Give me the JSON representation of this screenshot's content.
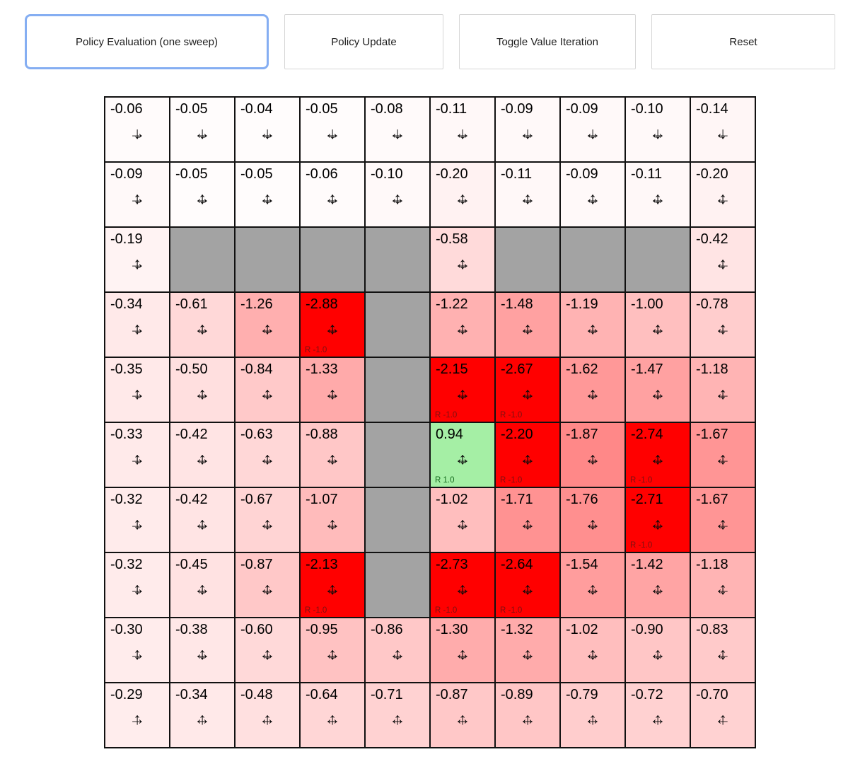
{
  "toolbar": {
    "buttons": [
      {
        "label": "Policy Evaluation (one sweep)",
        "active": true
      },
      {
        "label": "Policy Update",
        "active": false
      },
      {
        "label": "Toggle Value Iteration",
        "active": false
      },
      {
        "label": "Reset",
        "active": false
      }
    ]
  },
  "colors": {
    "accent": "#85aef2",
    "wall": "#a3a3a3",
    "negative": "#ff0000",
    "positive": "#8ce68c",
    "grid_line": "#111111"
  },
  "grid": {
    "rows": 10,
    "cols": 10,
    "cells": [
      [
        {
          "t": "-0.06",
          "v": -0.06,
          "d": "dr"
        },
        {
          "t": "-0.05",
          "v": -0.05,
          "d": "dlr"
        },
        {
          "t": "-0.04",
          "v": -0.04,
          "d": "dlr"
        },
        {
          "t": "-0.05",
          "v": -0.05,
          "d": "dlr"
        },
        {
          "t": "-0.08",
          "v": -0.08,
          "d": "dlr"
        },
        {
          "t": "-0.11",
          "v": -0.11,
          "d": "dlr"
        },
        {
          "t": "-0.09",
          "v": -0.09,
          "d": "dlr"
        },
        {
          "t": "-0.09",
          "v": -0.09,
          "d": "dlr"
        },
        {
          "t": "-0.10",
          "v": -0.1,
          "d": "dlr"
        },
        {
          "t": "-0.14",
          "v": -0.14,
          "d": "dl"
        }
      ],
      [
        {
          "t": "-0.09",
          "v": -0.09,
          "d": "udr"
        },
        {
          "t": "-0.05",
          "v": -0.05,
          "d": "udlr"
        },
        {
          "t": "-0.05",
          "v": -0.05,
          "d": "udlr"
        },
        {
          "t": "-0.06",
          "v": -0.06,
          "d": "udlr"
        },
        {
          "t": "-0.10",
          "v": -0.1,
          "d": "udlr"
        },
        {
          "t": "-0.20",
          "v": -0.2,
          "d": "udlr"
        },
        {
          "t": "-0.11",
          "v": -0.11,
          "d": "udlr"
        },
        {
          "t": "-0.09",
          "v": -0.09,
          "d": "udlr"
        },
        {
          "t": "-0.11",
          "v": -0.11,
          "d": "udlr"
        },
        {
          "t": "-0.20",
          "v": -0.2,
          "d": "udl"
        }
      ],
      [
        {
          "t": "-0.19",
          "v": -0.19,
          "d": "udr"
        },
        {
          "w": true
        },
        {
          "w": true
        },
        {
          "w": true
        },
        {
          "w": true
        },
        {
          "t": "-0.58",
          "v": -0.58,
          "d": "udlr"
        },
        {
          "w": true
        },
        {
          "w": true
        },
        {
          "w": true
        },
        {
          "t": "-0.42",
          "v": -0.42,
          "d": "udl"
        }
      ],
      [
        {
          "t": "-0.34",
          "v": -0.34,
          "d": "udr"
        },
        {
          "t": "-0.61",
          "v": -0.61,
          "d": "udlr"
        },
        {
          "t": "-1.26",
          "v": -1.26,
          "d": "udlr"
        },
        {
          "t": "-2.88",
          "v": -2.88,
          "d": "udlr",
          "r": "R -1.0"
        },
        {
          "w": true
        },
        {
          "t": "-1.22",
          "v": -1.22,
          "d": "udlr"
        },
        {
          "t": "-1.48",
          "v": -1.48,
          "d": "udlr"
        },
        {
          "t": "-1.19",
          "v": -1.19,
          "d": "udlr"
        },
        {
          "t": "-1.00",
          "v": -1.0,
          "d": "udlr"
        },
        {
          "t": "-0.78",
          "v": -0.78,
          "d": "udl"
        }
      ],
      [
        {
          "t": "-0.35",
          "v": -0.35,
          "d": "udr"
        },
        {
          "t": "-0.50",
          "v": -0.5,
          "d": "udlr"
        },
        {
          "t": "-0.84",
          "v": -0.84,
          "d": "udlr"
        },
        {
          "t": "-1.33",
          "v": -1.33,
          "d": "udlr"
        },
        {
          "w": true
        },
        {
          "t": "-2.15",
          "v": -2.15,
          "d": "udlr",
          "r": "R -1.0"
        },
        {
          "t": "-2.67",
          "v": -2.67,
          "d": "udlr",
          "r": "R -1.0"
        },
        {
          "t": "-1.62",
          "v": -1.62,
          "d": "udlr"
        },
        {
          "t": "-1.47",
          "v": -1.47,
          "d": "udlr"
        },
        {
          "t": "-1.18",
          "v": -1.18,
          "d": "udl"
        }
      ],
      [
        {
          "t": "-0.33",
          "v": -0.33,
          "d": "udr"
        },
        {
          "t": "-0.42",
          "v": -0.42,
          "d": "udlr"
        },
        {
          "t": "-0.63",
          "v": -0.63,
          "d": "udlr"
        },
        {
          "t": "-0.88",
          "v": -0.88,
          "d": "udlr"
        },
        {
          "w": true
        },
        {
          "t": "0.94",
          "v": 0.94,
          "d": "udlr",
          "r": "R 1.0"
        },
        {
          "t": "-2.20",
          "v": -2.2,
          "d": "udlr",
          "r": "R -1.0"
        },
        {
          "t": "-1.87",
          "v": -1.87,
          "d": "udlr"
        },
        {
          "t": "-2.74",
          "v": -2.74,
          "d": "udlr",
          "r": "R -1.0"
        },
        {
          "t": "-1.67",
          "v": -1.67,
          "d": "udl"
        }
      ],
      [
        {
          "t": "-0.32",
          "v": -0.32,
          "d": "udr"
        },
        {
          "t": "-0.42",
          "v": -0.42,
          "d": "udlr"
        },
        {
          "t": "-0.67",
          "v": -0.67,
          "d": "udlr"
        },
        {
          "t": "-1.07",
          "v": -1.07,
          "d": "udlr"
        },
        {
          "w": true
        },
        {
          "t": "-1.02",
          "v": -1.02,
          "d": "udlr"
        },
        {
          "t": "-1.71",
          "v": -1.71,
          "d": "udlr"
        },
        {
          "t": "-1.76",
          "v": -1.76,
          "d": "udlr"
        },
        {
          "t": "-2.71",
          "v": -2.71,
          "d": "udlr",
          "r": "R -1.0"
        },
        {
          "t": "-1.67",
          "v": -1.67,
          "d": "udl"
        }
      ],
      [
        {
          "t": "-0.32",
          "v": -0.32,
          "d": "udr"
        },
        {
          "t": "-0.45",
          "v": -0.45,
          "d": "udlr"
        },
        {
          "t": "-0.87",
          "v": -0.87,
          "d": "udlr"
        },
        {
          "t": "-2.13",
          "v": -2.13,
          "d": "udlr",
          "r": "R -1.0"
        },
        {
          "w": true
        },
        {
          "t": "-2.73",
          "v": -2.73,
          "d": "udlr",
          "r": "R -1.0"
        },
        {
          "t": "-2.64",
          "v": -2.64,
          "d": "udlr",
          "r": "R -1.0"
        },
        {
          "t": "-1.54",
          "v": -1.54,
          "d": "udlr"
        },
        {
          "t": "-1.42",
          "v": -1.42,
          "d": "udlr"
        },
        {
          "t": "-1.18",
          "v": -1.18,
          "d": "udl"
        }
      ],
      [
        {
          "t": "-0.30",
          "v": -0.3,
          "d": "udr"
        },
        {
          "t": "-0.38",
          "v": -0.38,
          "d": "udlr"
        },
        {
          "t": "-0.60",
          "v": -0.6,
          "d": "udlr"
        },
        {
          "t": "-0.95",
          "v": -0.95,
          "d": "udlr"
        },
        {
          "t": "-0.86",
          "v": -0.86,
          "d": "udlr"
        },
        {
          "t": "-1.30",
          "v": -1.3,
          "d": "udlr"
        },
        {
          "t": "-1.32",
          "v": -1.32,
          "d": "udlr"
        },
        {
          "t": "-1.02",
          "v": -1.02,
          "d": "udlr"
        },
        {
          "t": "-0.90",
          "v": -0.9,
          "d": "udlr"
        },
        {
          "t": "-0.83",
          "v": -0.83,
          "d": "udl"
        }
      ],
      [
        {
          "t": "-0.29",
          "v": -0.29,
          "d": "ur"
        },
        {
          "t": "-0.34",
          "v": -0.34,
          "d": "ulr"
        },
        {
          "t": "-0.48",
          "v": -0.48,
          "d": "ulr"
        },
        {
          "t": "-0.64",
          "v": -0.64,
          "d": "ulr"
        },
        {
          "t": "-0.71",
          "v": -0.71,
          "d": "ulr"
        },
        {
          "t": "-0.87",
          "v": -0.87,
          "d": "ulr"
        },
        {
          "t": "-0.89",
          "v": -0.89,
          "d": "ulr"
        },
        {
          "t": "-0.79",
          "v": -0.79,
          "d": "ulr"
        },
        {
          "t": "-0.72",
          "v": -0.72,
          "d": "ulr"
        },
        {
          "t": "-0.70",
          "v": -0.7,
          "d": "ul"
        }
      ]
    ]
  }
}
